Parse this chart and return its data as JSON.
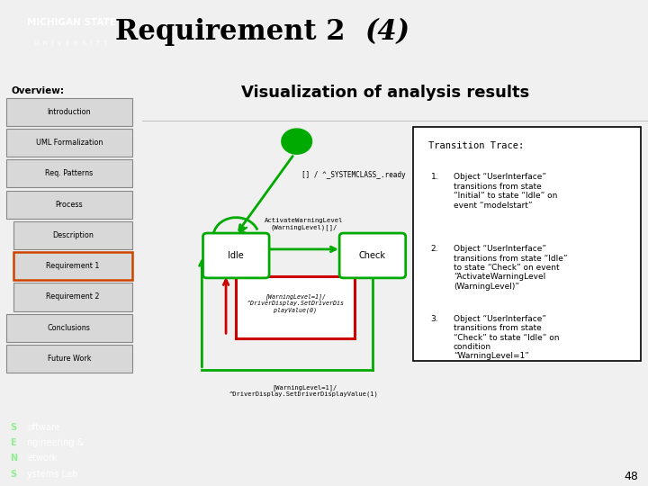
{
  "title_normal": "Requirement 2 ",
  "title_italic": "(4)",
  "subtitle": "Visualization of analysis results",
  "slide_bg": "#f0f0f0",
  "content_bg": "#ffffff",
  "sidebar_bg": "#e8e8e8",
  "header_bg": "#ffffff",
  "msu_green": "#18453b",
  "sidebar_items": [
    "Introduction",
    "UML Formalization",
    "Req. Patterns",
    "Process",
    "Description",
    "Requirement 1",
    "Requirement 2",
    "Conclusions",
    "Future Work"
  ],
  "sidebar_indented": [
    "Description",
    "Requirement 1",
    "Requirement 2"
  ],
  "sidebar_highlighted": "Requirement 1",
  "overview_label": "Overview:",
  "transition_title": "Transition Trace:",
  "transition_items": [
    "Object “UserInterface”\ntransitions from state\n“Initial” to state “Idle” on\nevent “modelstart”",
    "Object “UserInterface”\ntransitions from state “Idle”\nto state “Check” on event\n“ActivateWarningLevel\n(WarningLevel)”",
    "Object “UserInterface”\ntransitions from state\n“Check” to state “Idle” on\ncondition\n“WarningLevel=1”"
  ],
  "diagram_label_initial": "[] / ^_SYSTEMCLASS_.ready",
  "diagram_label_idle": "Idle",
  "diagram_label_check": "Check",
  "diagram_arrow_top": "ActivateWarningLevel\n(WarningLevel)[]/",
  "diagram_red_box": "[WarningLevel=1]/\n^DriverDisplay.SetDriverDis\nplayValue(0)",
  "diagram_bottom_label": "[WarningLevel=1]/\n^DriverDisplay.SetDriverDisplayValue(1)",
  "page_number": "48",
  "green": "#00aa00",
  "red": "#cc0000"
}
